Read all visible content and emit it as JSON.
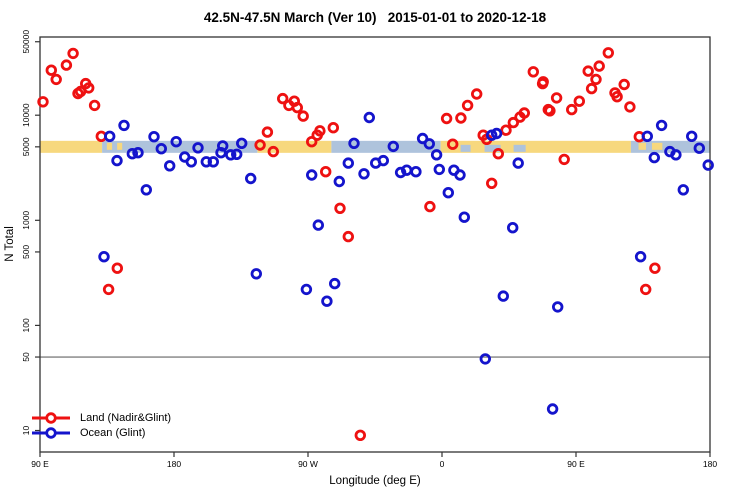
{
  "title": "42.5N-47.5N March (Ver 10)   2015-01-01 to 2020-12-18",
  "legend": {
    "items": [
      {
        "label": "Land (Nadir&Glint)",
        "color": "#ee1111"
      },
      {
        "label": "Ocean (Glint)",
        "color": "#1414cc"
      }
    ]
  },
  "colors": {
    "land_marker": "#ee1111",
    "ocean_marker": "#1414cc",
    "land_band": "#f7d87e",
    "ocean_band": "#aec3dc",
    "reference_line": "#808080",
    "axis": "#333333"
  },
  "chart_data": {
    "type": "scatter",
    "title": "42.5N-47.5N March (Ver 10)   2015-01-01 to 2020-12-18",
    "xlabel": "Longitude (deg E)",
    "ylabel": "N Total",
    "y_scale": "log",
    "ylim": [
      6,
      60000
    ],
    "y_ticks": [
      10,
      50,
      100,
      500,
      1000,
      5000,
      10000,
      50000
    ],
    "y_tick_labels": [
      "10",
      "50",
      "100",
      "500",
      "1000",
      "5000",
      "10000",
      "50000"
    ],
    "reference_line_value": 50,
    "x_axis_start": "90 E",
    "x_axis_span_deg": 450,
    "x_ticks": [
      {
        "deg": 0,
        "label": "90 E"
      },
      {
        "deg": 90,
        "label": "180"
      },
      {
        "deg": 180,
        "label": "90 W"
      },
      {
        "deg": 270,
        "label": "0"
      },
      {
        "deg": 360,
        "label": "90 E"
      },
      {
        "deg": 450,
        "label": "180"
      }
    ],
    "land_ocean_band": {
      "description": "strip map of surface type along 42.5N-47.5N, centered at N=5000",
      "center_value": 5000,
      "segments": [
        {
          "from": 0,
          "to": 41.7,
          "surface": "land"
        },
        {
          "from": 41.7,
          "to": 146.0,
          "surface": "ocean"
        },
        {
          "from": 146.0,
          "to": 195.7,
          "surface": "land"
        },
        {
          "from": 195.7,
          "to": 269.1,
          "surface": "ocean"
        },
        {
          "from": 269.1,
          "to": 396.9,
          "surface": "land"
        },
        {
          "from": 396.9,
          "to": 450.0,
          "surface": "ocean"
        }
      ],
      "islands": [
        {
          "from": 44.9,
          "to": 48.4
        },
        {
          "from": 51.8,
          "to": 55.2
        },
        {
          "from": 402.0,
          "to": 407.0
        },
        {
          "from": 411.0,
          "to": 418.0
        }
      ],
      "seas": [
        {
          "from": 282.5,
          "to": 289.2
        },
        {
          "from": 298.6,
          "to": 309.4
        },
        {
          "from": 318.1,
          "to": 326.2
        }
      ]
    },
    "series": [
      {
        "name": "Land (Nadir&Glint)",
        "color": "#ee1111",
        "points": [
          [
            2.0,
            13400
          ],
          [
            7.6,
            26800
          ],
          [
            10.9,
            21900
          ],
          [
            17.7,
            30000
          ],
          [
            22.2,
            38700
          ],
          [
            25.5,
            16100
          ],
          [
            27.3,
            16800
          ],
          [
            30.7,
            20000
          ],
          [
            32.7,
            18200
          ],
          [
            36.7,
            12400
          ],
          [
            41.2,
            6300
          ],
          [
            46.1,
            220
          ],
          [
            51.9,
            350
          ],
          [
            147.8,
            5200
          ],
          [
            152.7,
            6900
          ],
          [
            156.7,
            4500
          ],
          [
            163.0,
            14400
          ],
          [
            167.2,
            12400
          ],
          [
            170.8,
            13600
          ],
          [
            172.8,
            11800
          ],
          [
            176.8,
            9800
          ],
          [
            182.5,
            5600
          ],
          [
            186.2,
            6450
          ],
          [
            188.0,
            7100
          ],
          [
            191.9,
            2900
          ],
          [
            197.0,
            7600
          ],
          [
            201.5,
            1300
          ],
          [
            207.1,
            700
          ],
          [
            215.1,
            9
          ],
          [
            261.9,
            1350
          ],
          [
            273.1,
            9300
          ],
          [
            277.2,
            5300
          ],
          [
            282.7,
            9400
          ],
          [
            287.2,
            12400
          ],
          [
            293.3,
            15900
          ],
          [
            297.7,
            6450
          ],
          [
            300.0,
            5900
          ],
          [
            303.4,
            2250
          ],
          [
            307.8,
            4300
          ],
          [
            313.0,
            7200
          ],
          [
            317.9,
            8500
          ],
          [
            322.4,
            9600
          ],
          [
            325.3,
            10500
          ],
          [
            331.3,
            25900
          ],
          [
            337.6,
            20000
          ],
          [
            338.0,
            20800
          ],
          [
            341.4,
            11300
          ],
          [
            342.5,
            11000
          ],
          [
            347.0,
            14600
          ],
          [
            352.1,
            3800
          ],
          [
            357.1,
            11300
          ],
          [
            362.2,
            13600
          ],
          [
            368.2,
            26300
          ],
          [
            370.5,
            17900
          ],
          [
            373.4,
            21900
          ],
          [
            375.6,
            29300
          ],
          [
            381.7,
            39200
          ],
          [
            386.2,
            16300
          ],
          [
            387.6,
            15000
          ],
          [
            392.4,
            19600
          ],
          [
            396.2,
            12000
          ],
          [
            402.5,
            6250
          ],
          [
            406.8,
            220
          ],
          [
            413.0,
            350
          ]
        ]
      },
      {
        "name": "Ocean (Glint)",
        "color": "#1414cc",
        "points": [
          [
            43.0,
            450
          ],
          [
            46.8,
            6300
          ],
          [
            51.7,
            3700
          ],
          [
            56.4,
            8000
          ],
          [
            62.0,
            4300
          ],
          [
            65.8,
            4400
          ],
          [
            71.4,
            1950
          ],
          [
            76.6,
            6250
          ],
          [
            81.5,
            4800
          ],
          [
            87.1,
            3300
          ],
          [
            91.5,
            5600
          ],
          [
            97.2,
            4000
          ],
          [
            101.6,
            3600
          ],
          [
            106.1,
            4900
          ],
          [
            111.7,
            3600
          ],
          [
            116.4,
            3600
          ],
          [
            121.6,
            4400
          ],
          [
            122.7,
            5100
          ],
          [
            128.1,
            4200
          ],
          [
            132.1,
            4250
          ],
          [
            135.5,
            5400
          ],
          [
            141.5,
            2500
          ],
          [
            145.3,
            310
          ],
          [
            178.9,
            220
          ],
          [
            182.5,
            2700
          ],
          [
            186.9,
            900
          ],
          [
            192.7,
            170
          ],
          [
            197.9,
            250
          ],
          [
            201.0,
            2340
          ],
          [
            207.1,
            3500
          ],
          [
            210.9,
            5400
          ],
          [
            217.6,
            2770
          ],
          [
            221.2,
            9500
          ],
          [
            225.5,
            3500
          ],
          [
            230.6,
            3700
          ],
          [
            237.3,
            5050
          ],
          [
            242.2,
            2850
          ],
          [
            246.3,
            3000
          ],
          [
            252.5,
            2900
          ],
          [
            257.0,
            6000
          ],
          [
            261.5,
            5350
          ],
          [
            266.4,
            4200
          ],
          [
            268.2,
            3050
          ],
          [
            274.2,
            1830
          ],
          [
            278.0,
            3000
          ],
          [
            282.1,
            2700
          ],
          [
            285.0,
            1070
          ],
          [
            299.1,
            48
          ],
          [
            303.4,
            6450
          ],
          [
            306.7,
            6700
          ],
          [
            311.2,
            190
          ],
          [
            317.5,
            850
          ],
          [
            321.2,
            3500
          ],
          [
            344.3,
            16
          ],
          [
            347.7,
            150
          ],
          [
            403.4,
            450
          ],
          [
            407.9,
            6300
          ],
          [
            412.6,
            3950
          ],
          [
            417.5,
            8000
          ],
          [
            423.1,
            4500
          ],
          [
            427.1,
            4200
          ],
          [
            432.1,
            1950
          ],
          [
            437.7,
            6300
          ],
          [
            442.8,
            4850
          ],
          [
            448.8,
            3350
          ]
        ]
      }
    ]
  }
}
